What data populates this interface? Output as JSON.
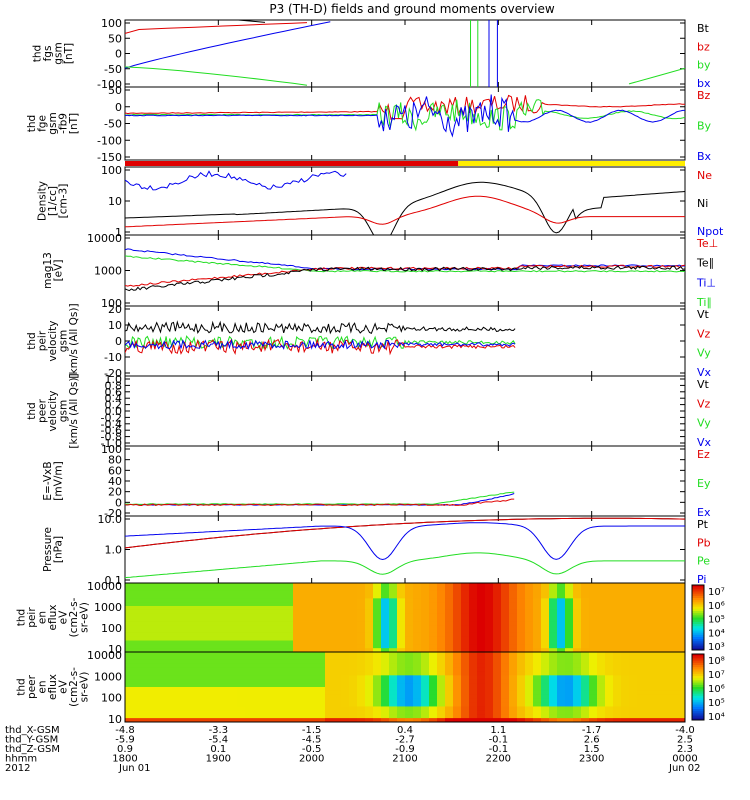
{
  "title": "P3 (TH-D) fields and ground moments overview",
  "colors": {
    "black": "#000000",
    "red": "#e00000",
    "green": "#22dd22",
    "blue": "#0000ee",
    "yellow": "#ffee00"
  },
  "chart_data": [
    {
      "id": "p1",
      "type": "line",
      "ylabel": [
        "thd",
        "fgs",
        "gsm",
        "[nT]"
      ],
      "yticks": [
        "100",
        "50",
        "0",
        "-50",
        "-100"
      ],
      "ylim": [
        -100,
        100
      ],
      "legend": [
        {
          "label": "Bt",
          "color": "black"
        },
        {
          "label": "bz",
          "color": "red"
        },
        {
          "label": "by",
          "color": "green"
        },
        {
          "label": "bx",
          "color": "blue"
        }
      ]
    },
    {
      "id": "p2",
      "type": "line",
      "ylabel": [
        "thd",
        "fge",
        "gsm",
        "-fb9",
        "[nT]"
      ],
      "yticks": [
        "50",
        "0",
        "-50",
        "-100",
        "-150"
      ],
      "ylim": [
        -175,
        75
      ],
      "legend": [
        {
          "label": "Bz",
          "color": "red"
        },
        {
          "label": "By",
          "color": "green"
        },
        {
          "label": "Bx",
          "color": "blue"
        }
      ]
    },
    {
      "id": "mode",
      "type": "bar",
      "segments": [
        {
          "from": 0,
          "to": 0.595,
          "color": "red"
        },
        {
          "from": 0.595,
          "to": 1,
          "color": "yellow"
        }
      ]
    },
    {
      "id": "p3",
      "type": "line",
      "ylabel": [
        "Density",
        "[1/cc]",
        "[cm-3]"
      ],
      "yticks": [
        "100",
        "10",
        "1"
      ],
      "ylim": [
        0.5,
        300
      ],
      "log": true,
      "legend": [
        {
          "label": "Ne",
          "color": "red"
        },
        {
          "label": "Ni",
          "color": "black"
        },
        {
          "label": "Npot",
          "color": "blue"
        }
      ]
    },
    {
      "id": "p4",
      "type": "line",
      "ylabel": [
        "mag13",
        "[eV]"
      ],
      "yticks": [
        "10000",
        "1000",
        "100"
      ],
      "ylim": [
        40,
        10000
      ],
      "log": true,
      "legend": [
        {
          "label": "Te⊥",
          "color": "red"
        },
        {
          "label": "Te∥",
          "color": "black"
        },
        {
          "label": "Ti⊥",
          "color": "blue"
        },
        {
          "label": "Ti∥",
          "color": "green"
        }
      ]
    },
    {
      "id": "p5",
      "type": "line",
      "ylabel": [
        "thd",
        "peir",
        "velocity",
        "gsm",
        "[km/s (All Qs)]"
      ],
      "yticks": [
        "20",
        "10",
        "0",
        "-10",
        "-20"
      ],
      "ylim": [
        -20,
        20
      ],
      "legend": [
        {
          "label": "Vt",
          "color": "black"
        },
        {
          "label": "Vz",
          "color": "red"
        },
        {
          "label": "Vy",
          "color": "green"
        },
        {
          "label": "Vx",
          "color": "blue"
        }
      ]
    },
    {
      "id": "p6",
      "type": "line",
      "ylabel": [
        "thd",
        "peer",
        "velocity",
        "gsm",
        "[km/s (All Qs)]"
      ],
      "yticks": [
        "1.0",
        "0.8",
        "0.6",
        "0.4",
        "0.2",
        "0.0",
        "-0.2",
        "-0.4",
        "-0.6",
        "-0.8",
        "-1.0"
      ],
      "ylim": [
        -1,
        1
      ],
      "legend": [
        {
          "label": "Vt",
          "color": "black"
        },
        {
          "label": "Vz",
          "color": "red"
        },
        {
          "label": "Vy",
          "color": "green"
        },
        {
          "label": "Vx",
          "color": "blue"
        }
      ]
    },
    {
      "id": "p7",
      "type": "line",
      "ylabel": [
        "E=-VxB",
        "[mV/m]"
      ],
      "yticks": [
        "100",
        "80",
        "60",
        "40",
        "20",
        "0",
        "-20"
      ],
      "ylim": [
        -20,
        100
      ],
      "legend": [
        {
          "label": "Ez",
          "color": "red"
        },
        {
          "label": "Ey",
          "color": "green"
        },
        {
          "label": "Ex",
          "color": "blue"
        }
      ]
    },
    {
      "id": "p8",
      "type": "line",
      "ylabel": [
        "Pressure",
        "[nPa]"
      ],
      "yticks": [
        "10.0",
        "1.0",
        "0.1"
      ],
      "ylim": [
        0.02,
        20
      ],
      "log": true,
      "legend": [
        {
          "label": "Pt",
          "color": "black"
        },
        {
          "label": "Pb",
          "color": "red"
        },
        {
          "label": "Pe",
          "color": "green"
        },
        {
          "label": "Pi",
          "color": "blue"
        }
      ]
    },
    {
      "id": "p9",
      "type": "heatmap",
      "ylabel": [
        "thd",
        "peir",
        "en",
        "eflux",
        "eV",
        "(cm2-s-",
        "sr-eV)"
      ],
      "yticks": [
        "10000",
        "1000",
        "100",
        "10"
      ],
      "colorbar": {
        "ticks": [
          "10⁷",
          "10⁶",
          "10⁵",
          "10⁴",
          "10³"
        ]
      }
    },
    {
      "id": "p10",
      "type": "heatmap",
      "ylabel": [
        "thd",
        "peer",
        "en",
        "eflux",
        "eV",
        "(cm2-s-",
        "sr-eV)"
      ],
      "yticks": [
        "10000",
        "1000",
        "100",
        "10"
      ],
      "colorbar": {
        "ticks": [
          "10⁸",
          "10⁷",
          "10⁶",
          "10⁵",
          "10⁴"
        ]
      }
    }
  ],
  "axis": {
    "row_labels": [
      "thd_X-GSM",
      "thd_Y-GSM",
      "thd_Z-GSM",
      "hhmm",
      "2012"
    ],
    "columns": [
      {
        "vals": [
          "-4.8",
          "-5.9",
          "0.9",
          "1800",
          "Jun 01"
        ]
      },
      {
        "vals": [
          "-3.3",
          "-5.4",
          "0.1",
          "1900",
          ""
        ]
      },
      {
        "vals": [
          "-1.5",
          "-4.5",
          "-0.5",
          "2000",
          ""
        ]
      },
      {
        "vals": [
          "0.4",
          "-2.7",
          "-0.9",
          "2100",
          ""
        ]
      },
      {
        "vals": [
          "1.1",
          "-0.1",
          "-0.1",
          "2200",
          ""
        ]
      },
      {
        "vals": [
          "-1.7",
          "2.6",
          "1.5",
          "2300",
          ""
        ]
      },
      {
        "vals": [
          "-4.0",
          "2.5",
          "2.3",
          "0000",
          "Jun 02"
        ]
      }
    ]
  }
}
